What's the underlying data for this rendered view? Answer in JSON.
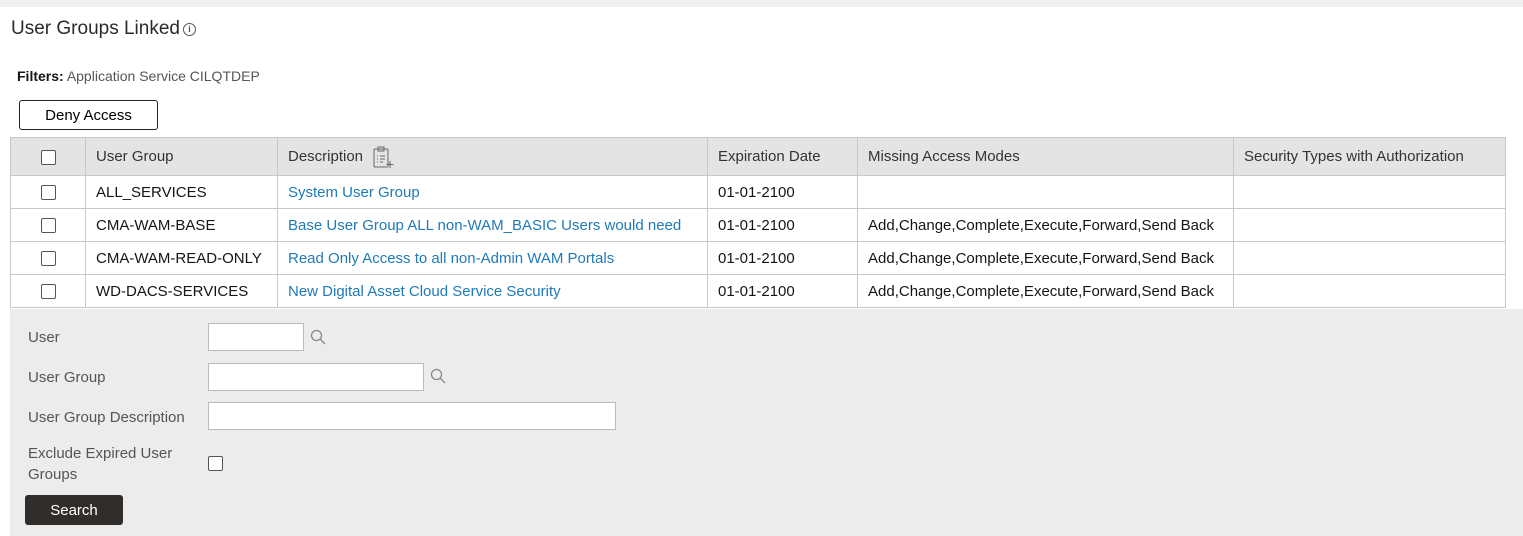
{
  "title": "User Groups Linked",
  "filters": {
    "label": "Filters:",
    "value": "Application Service CILQTDEP"
  },
  "deny_label": "Deny Access",
  "columns": [
    "User Group",
    "Description",
    "Expiration Date",
    "Missing Access Modes",
    "Security Types with Authorization"
  ],
  "rows": [
    {
      "group": "ALL_SERVICES",
      "desc": "System User Group",
      "exp": "01-01-2100",
      "modes": "",
      "sec": ""
    },
    {
      "group": "CMA-WAM-BASE",
      "desc": "Base User Group ALL non-WAM_BASIC Users would need",
      "exp": "01-01-2100",
      "modes": "Add,Change,Complete,Execute,Forward,Send Back",
      "sec": ""
    },
    {
      "group": "CMA-WAM-READ-ONLY",
      "desc": "Read Only Access to all non-Admin WAM Portals",
      "exp": "01-01-2100",
      "modes": "Add,Change,Complete,Execute,Forward,Send Back",
      "sec": ""
    },
    {
      "group": "WD-DACS-SERVICES",
      "desc": "New Digital Asset Cloud Service Security",
      "exp": "01-01-2100",
      "modes": "Add,Change,Complete,Execute,Forward,Send Back",
      "sec": ""
    }
  ],
  "form": {
    "user": "User",
    "user_group": "User Group",
    "desc": "User Group Description",
    "exclude": "Exclude Expired User Groups",
    "search": "Search"
  },
  "colors": {
    "link": "#1f7ab8",
    "button_dark": "#312d2a"
  }
}
